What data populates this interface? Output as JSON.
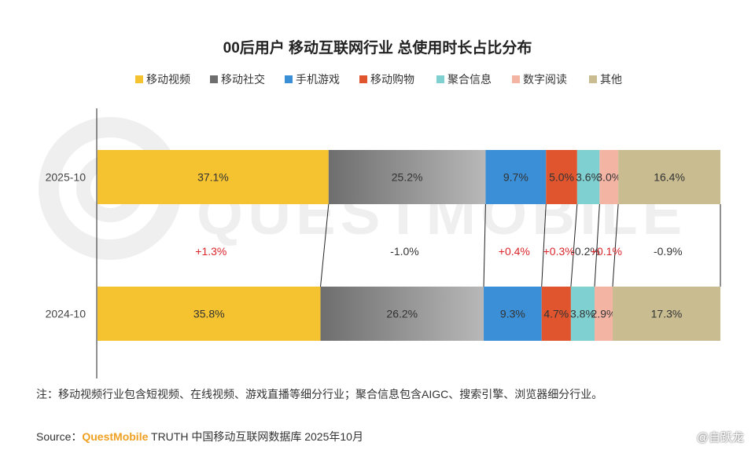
{
  "chart_data": {
    "type": "bar",
    "subtype": "stacked-100-horizontal",
    "title": "00后用户 移动互联网行业 总使用时长占比分布",
    "categories": [
      "2025-10",
      "2024-10"
    ],
    "series": [
      {
        "name": "移动视频",
        "values": [
          37.1,
          35.8
        ],
        "labels": [
          "37.1%",
          "35.8%"
        ],
        "change": "+1.3%",
        "color": "#f5c230",
        "color_end": "#f5c230"
      },
      {
        "name": "移动社交",
        "values": [
          25.2,
          26.2
        ],
        "labels": [
          "25.2%",
          "26.2%"
        ],
        "change": "-1.0%",
        "color": "#6e6e6e",
        "color_end": "#b8b8b8"
      },
      {
        "name": "手机游戏",
        "values": [
          9.7,
          9.3
        ],
        "labels": [
          "9.7%",
          "9.3%"
        ],
        "change": "+0.4%",
        "color": "#3a8fd6",
        "color_end": "#3a8fd6"
      },
      {
        "name": "移动购物",
        "values": [
          5.0,
          4.7
        ],
        "labels": [
          "5.0%",
          "4.7%"
        ],
        "change": "+0.3%",
        "color": "#e0552e",
        "color_end": "#e0552e"
      },
      {
        "name": "聚合信息",
        "values": [
          3.6,
          3.8
        ],
        "labels": [
          "3.6%",
          "3.8%"
        ],
        "change": "-0.2%",
        "color": "#7fd0d0",
        "color_end": "#7fd0d0"
      },
      {
        "name": "数字阅读",
        "values": [
          3.0,
          2.9
        ],
        "labels": [
          "3.0%",
          "2.9%"
        ],
        "change": "+0.1%",
        "color": "#f4b4a4",
        "color_end": "#f4b4a4"
      },
      {
        "name": "其他",
        "values": [
          16.4,
          17.3
        ],
        "labels": [
          "16.4%",
          "17.3%"
        ],
        "change": "-0.9%",
        "color": "#c8bc90",
        "color_end": "#c8bc90"
      }
    ],
    "positive_color": "#d9252b",
    "negative_color": "#333333",
    "legend": "top-center",
    "xlim": [
      0,
      100
    ]
  },
  "footnote": "注：移动视频行业包含短视频、在线视频、游戏直播等细分行业；聚合信息包含AIGC、搜索引擎、浏览器细分行业。",
  "source": {
    "label": "Source：",
    "brand": "QuestMobile",
    "text": " TRUTH 中国移动互联网数据库 2025年10月"
  },
  "watermark": "QUESTMOBILE",
  "weibo_mark": "@自跃龙"
}
